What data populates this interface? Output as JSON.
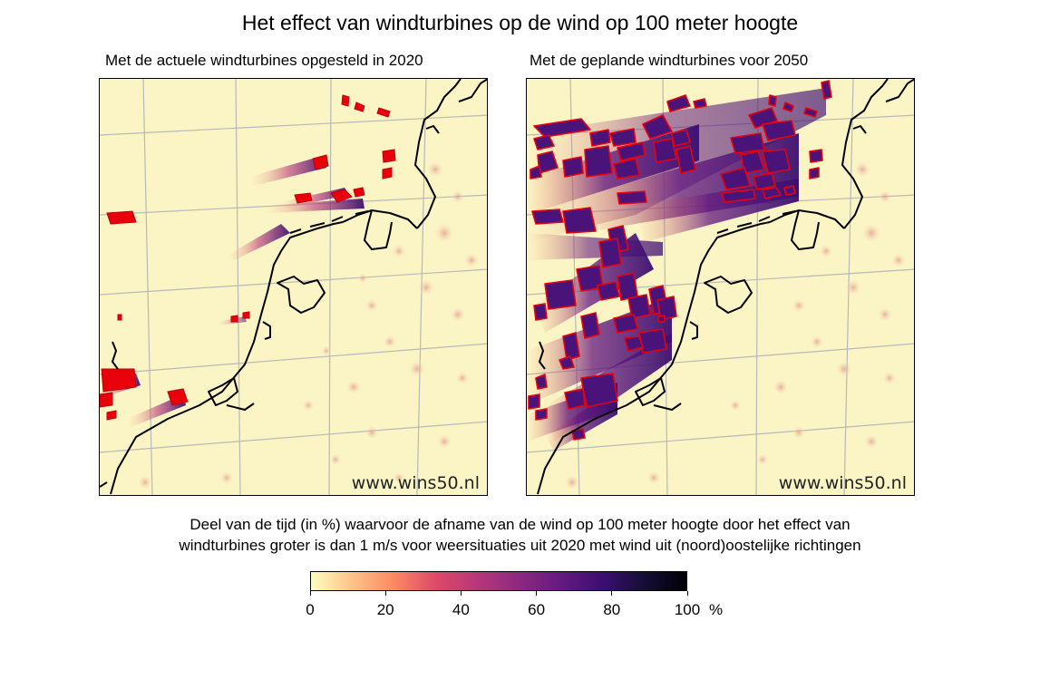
{
  "title": "Het effect van windturbines op de wind op 100 meter hoogte",
  "panels": [
    {
      "subtitle": "Met de actuele windturbines opgesteld in 2020",
      "watermark": "www.wins50.nl"
    },
    {
      "subtitle": "Met de geplande windturbines voor 2050",
      "watermark": "www.wins50.nl"
    }
  ],
  "caption_line1": "Deel van de tijd (in %) waarvoor de afname van de wind op 100 meter hoogte door het effect van",
  "caption_line2": "windturbines groter is dan 1 m/s voor weersituaties uit 2020 met wind uit (noord)oostelijke richtingen",
  "colorbar": {
    "ticks": [
      "0",
      "20",
      "40",
      "60",
      "80",
      "100"
    ],
    "unit": "%",
    "min": 0,
    "max": 100,
    "colormap": [
      "#fcfdbf",
      "#fec287",
      "#fb8861",
      "#de4968",
      "#b73779",
      "#8c2981",
      "#641a80",
      "#3b0f70",
      "#140e36",
      "#000004"
    ]
  },
  "colors": {
    "sea_land_background": "#fbf5c6",
    "wind_farm_outline": "#e8000b",
    "wake_dark": "#3b0f70",
    "wake_mid": "#b73779",
    "grid": "#b8b8b8",
    "coastline": "#000000"
  }
}
